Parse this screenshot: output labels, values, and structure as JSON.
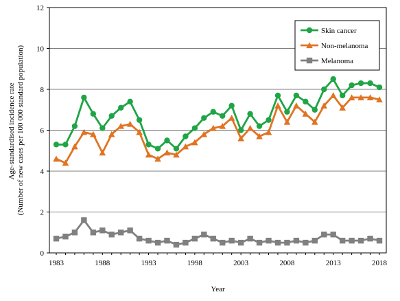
{
  "chart_data": {
    "type": "line",
    "xlabel": "Year",
    "ylabel_lines": [
      "Age-standardised incidence rate",
      "(Number of new cases per 100 000 standard population)"
    ],
    "xlim": [
      1983,
      2018
    ],
    "ylim": [
      0,
      12
    ],
    "y_ticks": [
      0,
      2,
      4,
      6,
      8,
      10,
      12
    ],
    "x_ticks": [
      1983,
      1988,
      1993,
      1998,
      2003,
      2008,
      2013,
      2018
    ],
    "legend_position": "top-right",
    "x": [
      1983,
      1984,
      1985,
      1986,
      1987,
      1988,
      1989,
      1990,
      1991,
      1992,
      1993,
      1994,
      1995,
      1996,
      1997,
      1998,
      1999,
      2000,
      2001,
      2002,
      2003,
      2004,
      2005,
      2006,
      2007,
      2008,
      2009,
      2010,
      2011,
      2012,
      2013,
      2014,
      2015,
      2016,
      2017,
      2018
    ],
    "series": [
      {
        "name": "Skin cancer",
        "color": "#1fa446",
        "marker": "circle",
        "values": [
          5.3,
          5.3,
          6.2,
          7.6,
          6.8,
          6.1,
          6.7,
          7.1,
          7.4,
          6.5,
          5.3,
          5.1,
          5.5,
          5.1,
          5.7,
          6.1,
          6.6,
          6.9,
          6.7,
          7.2,
          6.0,
          6.8,
          6.2,
          6.5,
          7.7,
          6.9,
          7.7,
          7.4,
          7.0,
          8.0,
          8.5,
          7.7,
          8.2,
          8.3,
          8.3,
          8.1
        ]
      },
      {
        "name": "Non-melanoma",
        "color": "#e07422",
        "marker": "triangle",
        "values": [
          4.6,
          4.4,
          5.2,
          5.9,
          5.8,
          4.9,
          5.8,
          6.2,
          6.3,
          5.9,
          4.8,
          4.6,
          4.9,
          4.8,
          5.2,
          5.4,
          5.8,
          6.1,
          6.2,
          6.6,
          5.6,
          6.1,
          5.7,
          5.9,
          7.2,
          6.4,
          7.2,
          6.8,
          6.4,
          7.2,
          7.7,
          7.1,
          7.6,
          7.6,
          7.6,
          7.5
        ]
      },
      {
        "name": "Melanoma",
        "color": "#808080",
        "marker": "square",
        "values": [
          0.7,
          0.8,
          1.0,
          1.6,
          1.0,
          1.1,
          0.9,
          1.0,
          1.1,
          0.7,
          0.6,
          0.5,
          0.6,
          0.4,
          0.5,
          0.7,
          0.9,
          0.7,
          0.5,
          0.6,
          0.5,
          0.7,
          0.5,
          0.6,
          0.5,
          0.5,
          0.6,
          0.5,
          0.6,
          0.9,
          0.9,
          0.6,
          0.6,
          0.6,
          0.7,
          0.6
        ]
      }
    ]
  }
}
